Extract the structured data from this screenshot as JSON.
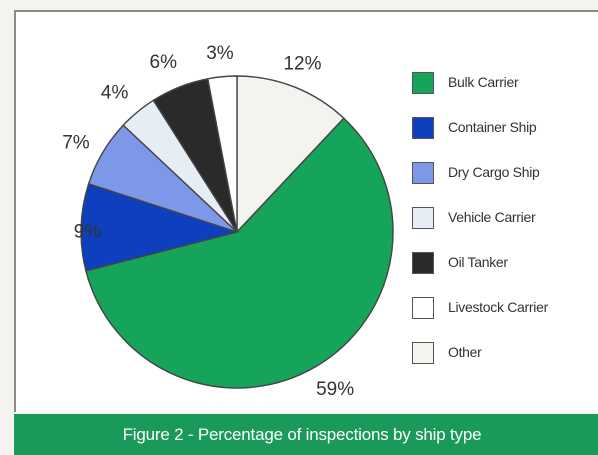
{
  "chart_data": {
    "type": "pie",
    "title": "Figure 2 - Percentage of inspections by ship type",
    "legend_position": "right",
    "slices": [
      {
        "label": "Bulk Carrier",
        "value": 59,
        "display": "59%",
        "color": "#16a35a"
      },
      {
        "label": "Container Ship",
        "value": 9,
        "display": "9%",
        "color": "#0d3fbf"
      },
      {
        "label": "Dry Cargo Ship",
        "value": 7,
        "display": "7%",
        "color": "#7d98e8"
      },
      {
        "label": "Vehicle Carrier",
        "value": 4,
        "display": "4%",
        "color": "#e6edf5"
      },
      {
        "label": "Oil Tanker",
        "value": 6,
        "display": "6%",
        "color": "#2a2a2a"
      },
      {
        "label": "Livestock Carrier",
        "value": 3,
        "display": "3%",
        "color": "#ffffff"
      },
      {
        "label": "Other",
        "value": 12,
        "display": "12%",
        "color": "#f3f3ef"
      }
    ]
  },
  "caption": {
    "text": "Figure 2 - Percentage of inspections by ship type",
    "bar_color": "#1a9a5a"
  }
}
